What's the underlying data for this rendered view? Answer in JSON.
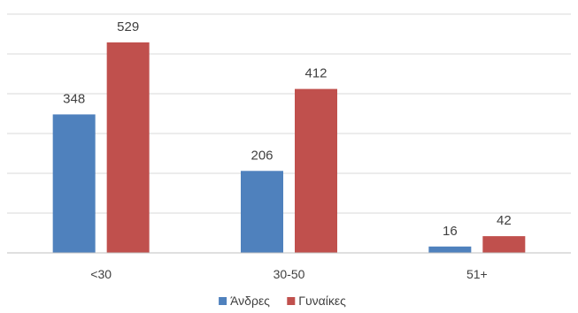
{
  "chart_data": {
    "type": "bar",
    "categories": [
      "<30",
      "30-50",
      "51+"
    ],
    "series": [
      {
        "name": "Άνδρες",
        "values": [
          348,
          206,
          16
        ],
        "color": "#4f81bd"
      },
      {
        "name": "Γυναίκες",
        "values": [
          529,
          412,
          42
        ],
        "color": "#c0504d"
      }
    ],
    "title": "",
    "xlabel": "",
    "ylabel": "",
    "ylim": [
      0,
      600
    ],
    "grid": true,
    "legend": "bottom-center"
  }
}
